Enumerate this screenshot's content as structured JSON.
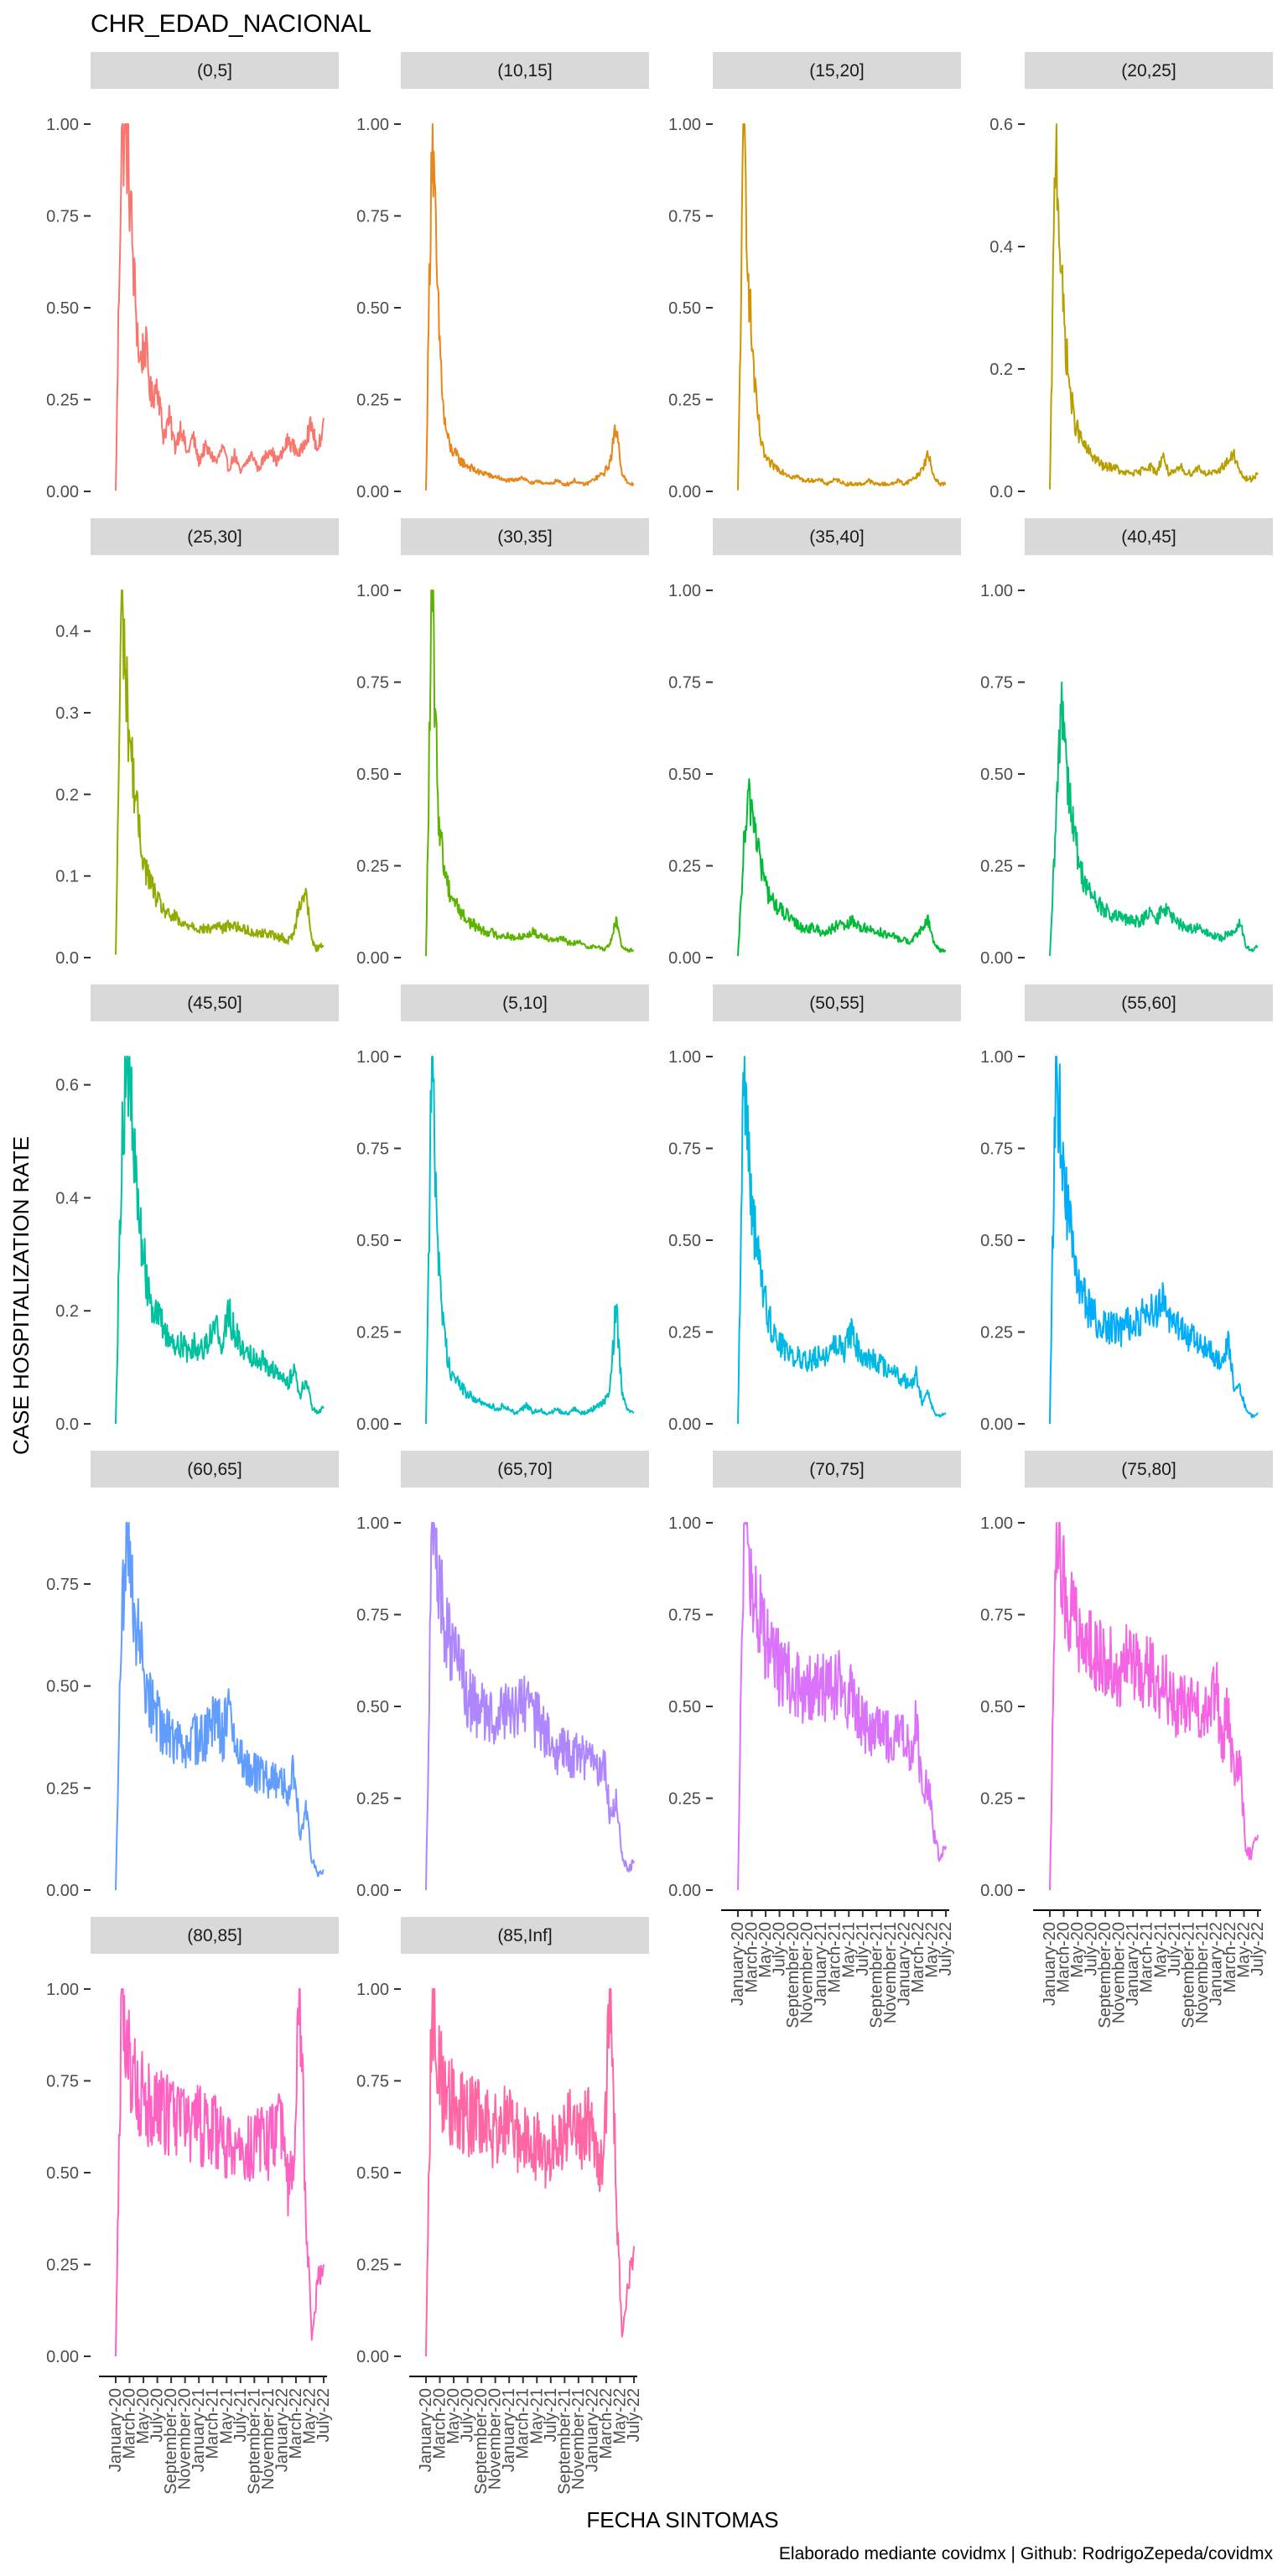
{
  "chart_data": {
    "type": "line",
    "title": "CHR_EDAD_NACIONAL",
    "xlabel": "FECHA SINTOMAS",
    "ylabel": "CASE HOSPITALIZATION RATE",
    "caption": "Elaborado mediante covidmx | Github: RodrigoZepeda/covidmx",
    "x_ticks": [
      "January-20",
      "March-20",
      "May-20",
      "July-20",
      "September-20",
      "November-20",
      "January-21",
      "March-21",
      "May-21",
      "July-21",
      "September-21",
      "November-21",
      "January-22",
      "March-22",
      "May-22",
      "July-22"
    ],
    "x_range": [
      "2020-01",
      "2022-08"
    ],
    "grid": false,
    "facets": [
      {
        "label": "(0,5]",
        "color": "#F8766D",
        "ylim": [
          0,
          1
        ],
        "yticks": [
          "0.00",
          "0.25",
          "0.50",
          "0.75",
          "1.00"
        ],
        "values": [
          0,
          1,
          0.95,
          0.6,
          0.35,
          0.4,
          0.25,
          0.3,
          0.15,
          0.2,
          0.12,
          0.18,
          0.1,
          0.15,
          0.08,
          0.12,
          0.1,
          0.08,
          0.12,
          0.06,
          0.1,
          0.05,
          0.08,
          0.1,
          0.06,
          0.09,
          0.12,
          0.08,
          0.1,
          0.14,
          0.12,
          0.1,
          0.15,
          0.18,
          0.1,
          0.2
        ]
      },
      {
        "label": "(10,15]",
        "color": "#E7861B",
        "ylim": [
          0,
          1
        ],
        "yticks": [
          "0.00",
          "0.25",
          "0.50",
          "0.75",
          "1.00"
        ],
        "values": [
          0,
          1,
          0.5,
          0.2,
          0.12,
          0.1,
          0.08,
          0.07,
          0.06,
          0.05,
          0.05,
          0.04,
          0.04,
          0.03,
          0.03,
          0.03,
          0.04,
          0.03,
          0.02,
          0.03,
          0.02,
          0.02,
          0.03,
          0.02,
          0.02,
          0.03,
          0.02,
          0.02,
          0.03,
          0.04,
          0.05,
          0.08,
          0.18,
          0.05,
          0.02,
          0.02
        ]
      },
      {
        "label": "(15,20]",
        "color": "#D39200",
        "ylim": [
          0,
          1
        ],
        "yticks": [
          "0.00",
          "0.25",
          "0.50",
          "0.75",
          "1.00"
        ],
        "values": [
          0,
          1,
          0.5,
          0.25,
          0.12,
          0.08,
          0.07,
          0.06,
          0.05,
          0.04,
          0.04,
          0.03,
          0.03,
          0.03,
          0.03,
          0.02,
          0.03,
          0.03,
          0.02,
          0.02,
          0.02,
          0.02,
          0.03,
          0.02,
          0.02,
          0.02,
          0.02,
          0.03,
          0.02,
          0.03,
          0.04,
          0.06,
          0.1,
          0.04,
          0.02,
          0.02
        ]
      },
      {
        "label": "(20,25]",
        "color": "#B79F00",
        "ylim": [
          0,
          0.6
        ],
        "yticks": [
          "0.0",
          "0.2",
          "0.4",
          "0.6"
        ],
        "values": [
          0,
          0.6,
          0.33,
          0.2,
          0.12,
          0.09,
          0.07,
          0.06,
          0.05,
          0.04,
          0.04,
          0.04,
          0.03,
          0.03,
          0.03,
          0.03,
          0.04,
          0.04,
          0.03,
          0.06,
          0.03,
          0.03,
          0.04,
          0.03,
          0.03,
          0.04,
          0.03,
          0.03,
          0.03,
          0.04,
          0.05,
          0.06,
          0.03,
          0.02,
          0.02,
          0.03
        ]
      },
      {
        "label": "(25,30]",
        "color": "#93AA00",
        "ylim": [
          0,
          0.45
        ],
        "yticks": [
          "0.0",
          "0.1",
          "0.2",
          "0.3",
          "0.4"
        ],
        "values": [
          0,
          0.45,
          0.3,
          0.22,
          0.15,
          0.11,
          0.09,
          0.07,
          0.06,
          0.05,
          0.05,
          0.04,
          0.04,
          0.04,
          0.035,
          0.035,
          0.035,
          0.04,
          0.035,
          0.04,
          0.04,
          0.035,
          0.035,
          0.03,
          0.03,
          0.03,
          0.03,
          0.025,
          0.025,
          0.02,
          0.03,
          0.07,
          0.08,
          0.02,
          0.01,
          0.015
        ]
      },
      {
        "label": "(30,35]",
        "color": "#5EB300",
        "ylim": [
          0,
          1
        ],
        "yticks": [
          "0.00",
          "0.25",
          "0.50",
          "0.75",
          "1.00"
        ],
        "values": [
          0,
          1,
          0.42,
          0.25,
          0.18,
          0.15,
          0.12,
          0.1,
          0.09,
          0.08,
          0.07,
          0.07,
          0.06,
          0.06,
          0.06,
          0.05,
          0.06,
          0.06,
          0.07,
          0.06,
          0.06,
          0.05,
          0.05,
          0.05,
          0.04,
          0.04,
          0.04,
          0.03,
          0.03,
          0.03,
          0.02,
          0.04,
          0.1,
          0.03,
          0.02,
          0.02
        ]
      },
      {
        "label": "(35,40]",
        "color": "#00BA38",
        "ylim": [
          0,
          1
        ],
        "yticks": [
          "0.00",
          "0.25",
          "0.50",
          "0.75",
          "1.00"
        ],
        "values": [
          0,
          0.3,
          0.44,
          0.35,
          0.24,
          0.18,
          0.15,
          0.13,
          0.12,
          0.1,
          0.09,
          0.08,
          0.08,
          0.08,
          0.07,
          0.07,
          0.08,
          0.09,
          0.08,
          0.1,
          0.09,
          0.08,
          0.08,
          0.07,
          0.07,
          0.06,
          0.06,
          0.05,
          0.05,
          0.04,
          0.06,
          0.08,
          0.1,
          0.04,
          0.02,
          0.02
        ]
      },
      {
        "label": "(40,45]",
        "color": "#00BF74",
        "ylim": [
          0,
          1
        ],
        "yticks": [
          "0.00",
          "0.25",
          "0.50",
          "0.75",
          "1.00"
        ],
        "values": [
          0,
          0.35,
          0.73,
          0.5,
          0.35,
          0.25,
          0.2,
          0.17,
          0.15,
          0.13,
          0.12,
          0.11,
          0.11,
          0.1,
          0.1,
          0.1,
          0.11,
          0.12,
          0.1,
          0.14,
          0.12,
          0.1,
          0.09,
          0.08,
          0.08,
          0.08,
          0.07,
          0.06,
          0.06,
          0.05,
          0.07,
          0.07,
          0.1,
          0.03,
          0.02,
          0.03
        ]
      },
      {
        "label": "(45,50]",
        "color": "#00C19F",
        "ylim": [
          0,
          0.65
        ],
        "yticks": [
          "0.0",
          "0.2",
          "0.4",
          "0.6"
        ],
        "values": [
          0,
          0.5,
          0.66,
          0.48,
          0.36,
          0.27,
          0.22,
          0.19,
          0.17,
          0.15,
          0.14,
          0.14,
          0.13,
          0.14,
          0.13,
          0.14,
          0.16,
          0.17,
          0.14,
          0.2,
          0.16,
          0.14,
          0.13,
          0.12,
          0.12,
          0.11,
          0.1,
          0.09,
          0.08,
          0.07,
          0.1,
          0.05,
          0.08,
          0.03,
          0.02,
          0.03
        ]
      },
      {
        "label": "(5,10]",
        "color": "#00BFC4",
        "ylim": [
          0,
          1
        ],
        "yticks": [
          "0.00",
          "0.25",
          "0.50",
          "0.75",
          "1.00"
        ],
        "values": [
          0,
          1,
          0.5,
          0.25,
          0.15,
          0.12,
          0.1,
          0.08,
          0.07,
          0.06,
          0.05,
          0.05,
          0.04,
          0.05,
          0.04,
          0.03,
          0.04,
          0.05,
          0.03,
          0.04,
          0.03,
          0.03,
          0.04,
          0.03,
          0.03,
          0.04,
          0.03,
          0.03,
          0.04,
          0.05,
          0.06,
          0.1,
          0.33,
          0.08,
          0.04,
          0.03
        ]
      },
      {
        "label": "(50,55]",
        "color": "#00B9E3",
        "ylim": [
          0,
          1
        ],
        "yticks": [
          "0.00",
          "0.25",
          "0.50",
          "0.75",
          "1.00"
        ],
        "values": [
          0,
          1,
          0.68,
          0.5,
          0.38,
          0.3,
          0.25,
          0.22,
          0.2,
          0.19,
          0.18,
          0.18,
          0.17,
          0.18,
          0.18,
          0.19,
          0.21,
          0.22,
          0.2,
          0.25,
          0.21,
          0.19,
          0.18,
          0.17,
          0.16,
          0.15,
          0.14,
          0.13,
          0.12,
          0.1,
          0.14,
          0.06,
          0.08,
          0.03,
          0.02,
          0.03
        ]
      },
      {
        "label": "(55,60]",
        "color": "#00ADFA",
        "ylim": [
          0,
          1
        ],
        "yticks": [
          "0.00",
          "0.25",
          "0.50",
          "0.75",
          "1.00"
        ],
        "values": [
          0,
          1,
          0.75,
          0.58,
          0.45,
          0.38,
          0.33,
          0.3,
          0.28,
          0.27,
          0.26,
          0.26,
          0.25,
          0.27,
          0.27,
          0.28,
          0.3,
          0.32,
          0.3,
          0.33,
          0.29,
          0.27,
          0.26,
          0.24,
          0.23,
          0.22,
          0.21,
          0.2,
          0.18,
          0.16,
          0.22,
          0.1,
          0.1,
          0.04,
          0.02,
          0.03
        ]
      },
      {
        "label": "(60,65]",
        "color": "#619CFF",
        "ylim": [
          0,
          0.9
        ],
        "yticks": [
          "0.00",
          "0.25",
          "0.50",
          "0.75"
        ],
        "values": [
          0,
          0.65,
          0.9,
          0.72,
          0.6,
          0.52,
          0.46,
          0.42,
          0.4,
          0.38,
          0.37,
          0.36,
          0.35,
          0.37,
          0.37,
          0.38,
          0.4,
          0.42,
          0.38,
          0.43,
          0.35,
          0.32,
          0.3,
          0.29,
          0.28,
          0.28,
          0.27,
          0.27,
          0.26,
          0.24,
          0.3,
          0.14,
          0.2,
          0.08,
          0.04,
          0.05
        ]
      },
      {
        "label": "(65,70]",
        "color": "#AE87FF",
        "ylim": [
          0,
          1
        ],
        "yticks": [
          "0.00",
          "0.25",
          "0.50",
          "0.75",
          "1.00"
        ],
        "values": [
          0,
          1,
          0.85,
          0.75,
          0.68,
          0.62,
          0.57,
          0.53,
          0.5,
          0.49,
          0.48,
          0.48,
          0.47,
          0.48,
          0.48,
          0.48,
          0.49,
          0.5,
          0.45,
          0.47,
          0.42,
          0.4,
          0.38,
          0.38,
          0.37,
          0.37,
          0.36,
          0.36,
          0.38,
          0.3,
          0.35,
          0.2,
          0.24,
          0.1,
          0.05,
          0.08
        ]
      },
      {
        "label": "(70,75]",
        "color": "#DB72FB",
        "ylim": [
          0,
          1
        ],
        "yticks": [
          "0.00",
          "0.25",
          "0.50",
          "0.75",
          "1.00"
        ],
        "values": [
          0,
          1,
          0.85,
          0.78,
          0.72,
          0.68,
          0.64,
          0.6,
          0.58,
          0.57,
          0.56,
          0.55,
          0.55,
          0.56,
          0.55,
          0.55,
          0.56,
          0.56,
          0.52,
          0.55,
          0.48,
          0.45,
          0.44,
          0.43,
          0.42,
          0.42,
          0.41,
          0.42,
          0.44,
          0.35,
          0.46,
          0.25,
          0.3,
          0.15,
          0.08,
          0.12
        ]
      },
      {
        "label": "(75,80]",
        "color": "#F564E3",
        "ylim": [
          0,
          1
        ],
        "yticks": [
          "0.00",
          "0.25",
          "0.50",
          "0.75",
          "1.00"
        ],
        "values": [
          0,
          1,
          0.85,
          0.77,
          0.73,
          0.7,
          0.67,
          0.65,
          0.63,
          0.62,
          0.61,
          0.61,
          0.6,
          0.62,
          0.62,
          0.6,
          0.6,
          0.6,
          0.55,
          0.58,
          0.52,
          0.5,
          0.5,
          0.5,
          0.49,
          0.5,
          0.5,
          0.52,
          0.55,
          0.4,
          0.5,
          0.3,
          0.35,
          0.1,
          0.1,
          0.15
        ]
      },
      {
        "label": "(80,85]",
        "color": "#FF61C3",
        "ylim": [
          0,
          1
        ],
        "yticks": [
          "0.00",
          "0.25",
          "0.50",
          "0.75",
          "1.00"
        ],
        "values": [
          0,
          1,
          0.85,
          0.75,
          0.72,
          0.7,
          0.68,
          0.67,
          0.66,
          0.65,
          0.64,
          0.64,
          0.63,
          0.64,
          0.63,
          0.62,
          0.62,
          0.6,
          0.57,
          0.6,
          0.55,
          0.55,
          0.56,
          0.57,
          0.58,
          0.58,
          0.58,
          0.6,
          0.62,
          0.45,
          0.55,
          1,
          0.4,
          0.05,
          0.2,
          0.25
        ]
      },
      {
        "label": "(85,Inf]",
        "color": "#FF67A4",
        "ylim": [
          0,
          1
        ],
        "yticks": [
          "0.00",
          "0.25",
          "0.50",
          "0.75",
          "1.00"
        ],
        "values": [
          0,
          1,
          0.8,
          0.72,
          0.7,
          0.68,
          0.67,
          0.66,
          0.65,
          0.64,
          0.63,
          0.62,
          0.62,
          0.63,
          0.62,
          0.6,
          0.6,
          0.58,
          0.55,
          0.6,
          0.52,
          0.55,
          0.58,
          0.6,
          0.62,
          0.62,
          0.6,
          0.62,
          0.65,
          0.5,
          0.6,
          1,
          0.45,
          0.05,
          0.2,
          0.3
        ]
      }
    ]
  }
}
